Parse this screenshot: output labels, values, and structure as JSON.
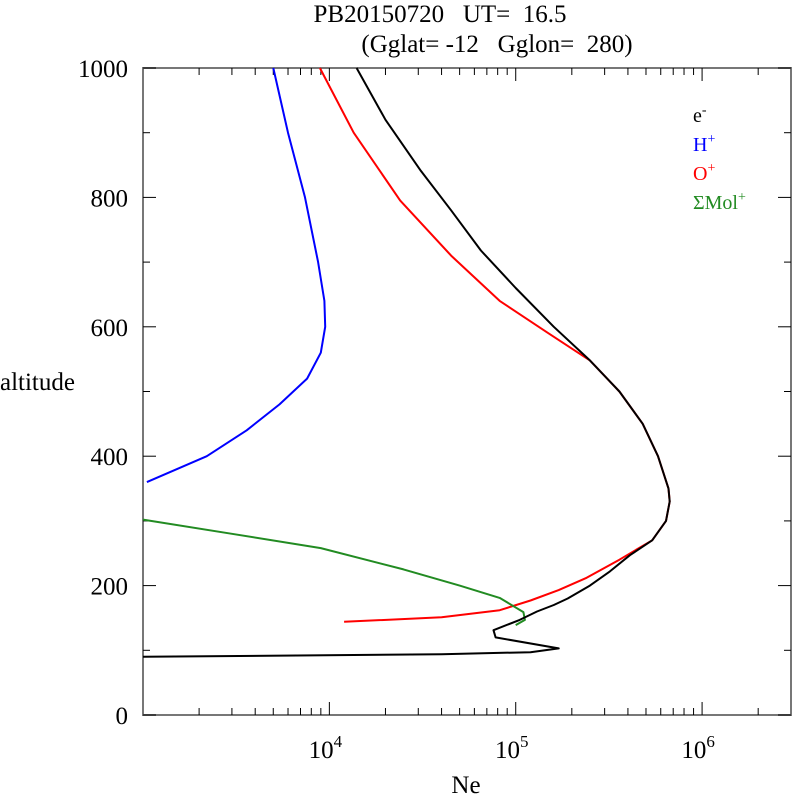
{
  "chart_data": {
    "type": "line",
    "title": "PB20150720   UT=  16.5",
    "subtitle": "(Gglat= -12   Gglon=  280)",
    "xlabel": "Ne",
    "ylabel": "altitude",
    "xscale": "log",
    "xlim": [
      1000,
      3000000
    ],
    "ylim": [
      0,
      1000
    ],
    "xticks": [
      {
        "value": 10000,
        "base": "10",
        "exp": "4"
      },
      {
        "value": 100000,
        "base": "10",
        "exp": "5"
      },
      {
        "value": 1000000,
        "base": "10",
        "exp": "6"
      }
    ],
    "yticks": [
      0,
      200,
      400,
      600,
      800,
      1000
    ],
    "ytick_labels": [
      "0",
      "200",
      "400",
      "600",
      "800",
      "1000"
    ],
    "grid": false,
    "legend_position": "top-right",
    "series": [
      {
        "name": "e-",
        "label_main": "e",
        "label_sup": "-",
        "color": "#000000",
        "points": [
          [
            14000,
            1000
          ],
          [
            20000,
            920
          ],
          [
            31000,
            841
          ],
          [
            45000,
            780
          ],
          [
            65000,
            718
          ],
          [
            100000,
            660
          ],
          [
            160000,
            600
          ],
          [
            250000,
            548
          ],
          [
            360000,
            500
          ],
          [
            480000,
            450
          ],
          [
            580000,
            400
          ],
          [
            660000,
            350
          ],
          [
            670000,
            330
          ],
          [
            640000,
            300
          ],
          [
            540000,
            270
          ],
          [
            410000,
            247
          ],
          [
            320000,
            222
          ],
          [
            250000,
            200
          ],
          [
            190000,
            180
          ],
          [
            160000,
            170
          ],
          [
            130000,
            160
          ],
          [
            105000,
            147
          ],
          [
            76000,
            131
          ],
          [
            78000,
            120
          ],
          [
            170000,
            103
          ],
          [
            120000,
            97
          ],
          [
            40000,
            94
          ],
          [
            1000,
            90
          ]
        ]
      },
      {
        "name": "H+",
        "label_main": "H",
        "label_sup": "+",
        "color": "#0000ff",
        "points": [
          [
            5000,
            1000
          ],
          [
            6000,
            900
          ],
          [
            7400,
            800
          ],
          [
            8700,
            700
          ],
          [
            9400,
            640
          ],
          [
            9500,
            600
          ],
          [
            9000,
            560
          ],
          [
            7600,
            520
          ],
          [
            5400,
            480
          ],
          [
            3600,
            440
          ],
          [
            2200,
            400
          ],
          [
            1050,
            360
          ]
        ]
      },
      {
        "name": "O+",
        "label_main": "O",
        "label_sup": "+",
        "color": "#ff0000",
        "points": [
          [
            8900,
            1000
          ],
          [
            13500,
            900
          ],
          [
            24000,
            795
          ],
          [
            45000,
            710
          ],
          [
            82000,
            640
          ],
          [
            150000,
            590
          ],
          [
            250000,
            548
          ],
          [
            360000,
            500
          ],
          [
            480000,
            450
          ],
          [
            580000,
            400
          ],
          [
            660000,
            350
          ],
          [
            670000,
            330
          ],
          [
            640000,
            300
          ],
          [
            540000,
            270
          ],
          [
            360000,
            240
          ],
          [
            240000,
            212
          ],
          [
            170000,
            193
          ],
          [
            120000,
            177
          ],
          [
            82000,
            162
          ],
          [
            40000,
            151
          ],
          [
            12000,
            144
          ]
        ]
      },
      {
        "name": "ΣMol+",
        "label_main": "ΣMol",
        "label_sup": "+",
        "color": "#228b22",
        "points": [
          [
            1000,
            302
          ],
          [
            3000,
            280
          ],
          [
            9000,
            258
          ],
          [
            25000,
            225
          ],
          [
            50000,
            200
          ],
          [
            82000,
            181
          ],
          [
            110000,
            159
          ],
          [
            112000,
            147
          ],
          [
            100000,
            139
          ]
        ]
      }
    ]
  }
}
